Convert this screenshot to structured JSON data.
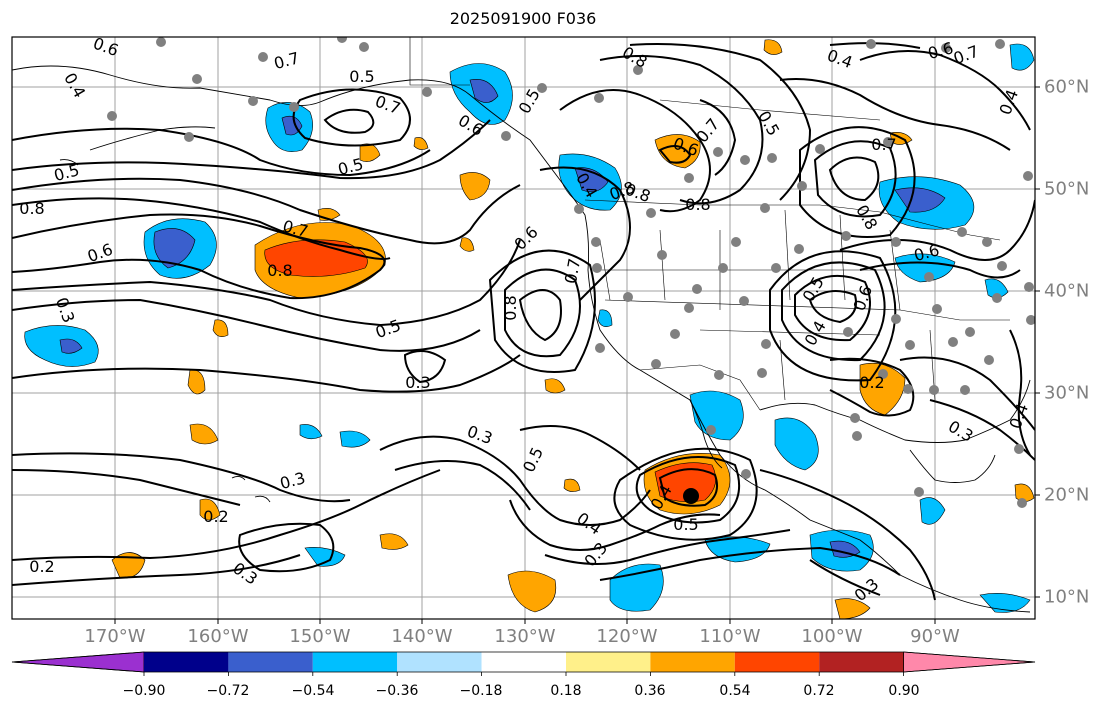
{
  "title": "2025091900 F036",
  "colors": {
    "ocean": "#ffffff",
    "grid": "#a0a0a0",
    "contour": "#000000",
    "coast": "#000000",
    "station": "#808080",
    "axis_label": "#808080"
  },
  "lon_labels": [
    "170°W",
    "160°W",
    "150°W",
    "140°W",
    "130°W",
    "120°W",
    "110°W",
    "100°W",
    "90°W"
  ],
  "lat_labels": [
    "60°N",
    "50°N",
    "40°N",
    "30°N",
    "20°N",
    "10°N"
  ],
  "colorbar": {
    "colors": [
      "#9b30d0",
      "#00008b",
      "#3a5fcd",
      "#00bfff",
      "#b0e2ff",
      "#ffffff",
      "#fff08a",
      "#ffa500",
      "#ff4500",
      "#b22222",
      "#ff88aa"
    ],
    "labels": [
      "−0.90",
      "−0.72",
      "−0.54",
      "−0.36",
      "−0.18",
      "0.18",
      "0.36",
      "0.54",
      "0.72",
      "0.90"
    ]
  },
  "contour_labels": [
    {
      "id": "c1",
      "text": "0.6"
    },
    {
      "id": "c2",
      "text": "0.7"
    },
    {
      "id": "c3",
      "text": "0.5"
    },
    {
      "id": "c4",
      "text": "0.4"
    },
    {
      "id": "c5",
      "text": "0.5"
    },
    {
      "id": "c6",
      "text": "0.7"
    },
    {
      "id": "c7",
      "text": "0.6"
    },
    {
      "id": "c8",
      "text": "0.5"
    },
    {
      "id": "c9",
      "text": "0.8"
    },
    {
      "id": "c10",
      "text": "0.6"
    },
    {
      "id": "c11",
      "text": "0.7"
    },
    {
      "id": "c12",
      "text": "0.8"
    },
    {
      "id": "c13",
      "text": "0.3"
    },
    {
      "id": "c14",
      "text": "0.5"
    },
    {
      "id": "c15",
      "text": "0.3"
    },
    {
      "id": "c16",
      "text": "0.3"
    },
    {
      "id": "c17",
      "text": "0.3"
    },
    {
      "id": "c18",
      "text": "0.2"
    },
    {
      "id": "c19",
      "text": "0.2"
    },
    {
      "id": "c20",
      "text": "0.3"
    },
    {
      "id": "c21",
      "text": "0.6"
    },
    {
      "id": "c22",
      "text": "0.8"
    },
    {
      "id": "c23",
      "text": "0.7"
    },
    {
      "id": "c24",
      "text": "0.5"
    },
    {
      "id": "c25",
      "text": "0.4"
    },
    {
      "id": "c26",
      "text": "0.5"
    },
    {
      "id": "c27",
      "text": "0.3"
    },
    {
      "id": "c28",
      "text": "0.8"
    },
    {
      "id": "c29",
      "text": "0.7"
    },
    {
      "id": "c30",
      "text": "0.6"
    },
    {
      "id": "c31",
      "text": "0.4"
    },
    {
      "id": "c32",
      "text": "0.5"
    },
    {
      "id": "c33",
      "text": "0.5"
    },
    {
      "id": "c34",
      "text": "0.7"
    },
    {
      "id": "c35",
      "text": "0.8"
    },
    {
      "id": "c36",
      "text": "0.6"
    },
    {
      "id": "c37",
      "text": "0.4"
    },
    {
      "id": "c38",
      "text": "0.7"
    },
    {
      "id": "c39",
      "text": "0.8"
    },
    {
      "id": "c40",
      "text": "0.6"
    },
    {
      "id": "c41",
      "text": "0.2"
    },
    {
      "id": "c42",
      "text": "0.3"
    },
    {
      "id": "c43",
      "text": "0.3"
    },
    {
      "id": "c44",
      "text": "0.4"
    },
    {
      "id": "c45",
      "text": "0.5"
    },
    {
      "id": "c46",
      "text": "0.4"
    },
    {
      "id": "c47",
      "text": "0.8"
    },
    {
      "id": "c48",
      "text": "0.6"
    },
    {
      "id": "c49",
      "text": "0.4"
    },
    {
      "id": "c50",
      "text": "0.4"
    },
    {
      "id": "c51",
      "text": "0.8"
    }
  ]
}
